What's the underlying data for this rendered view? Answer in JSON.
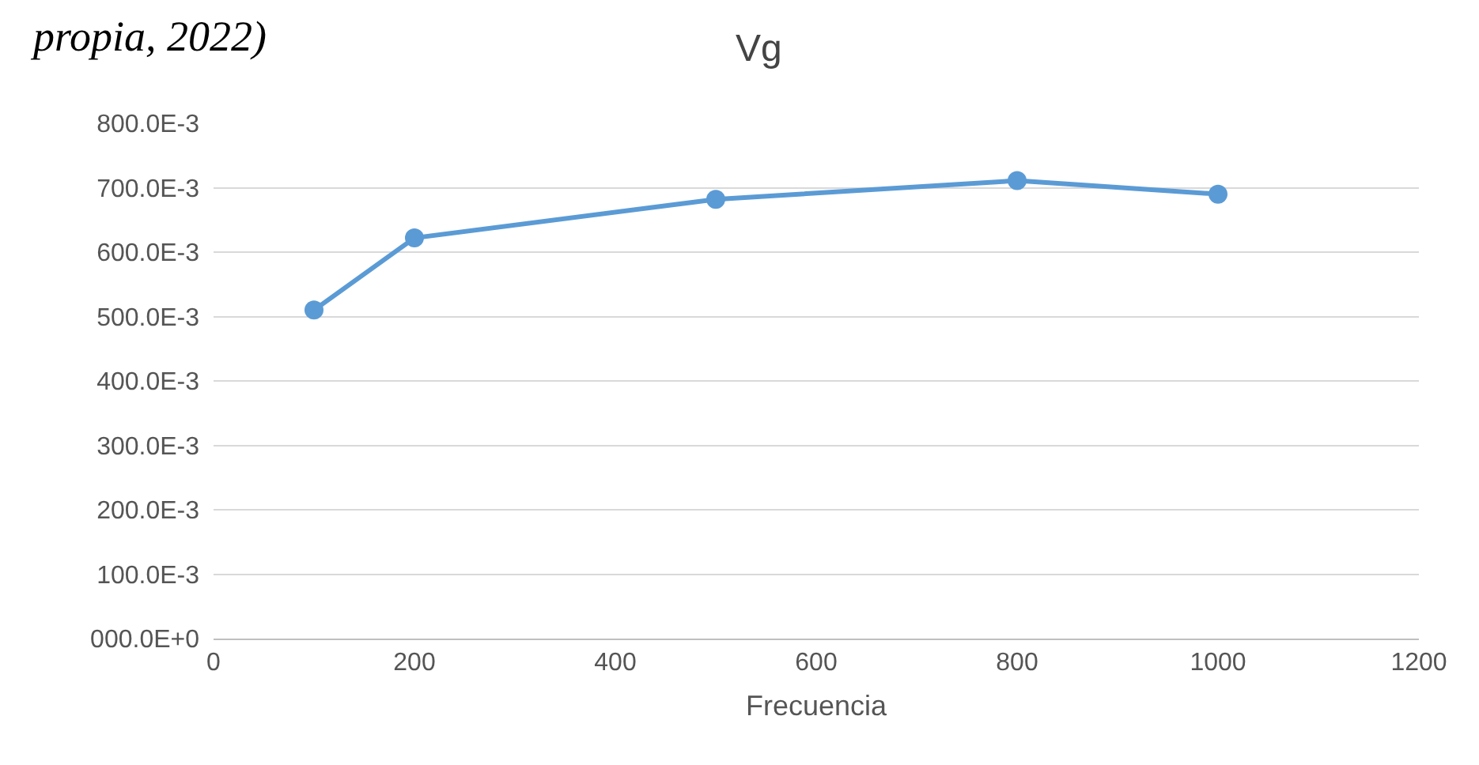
{
  "chart_data": {
    "type": "line",
    "title": "Vg",
    "xlabel": "Frecuencia",
    "annotations": [
      "propia, 2022)"
    ],
    "x": [
      100,
      200,
      500,
      800,
      1000
    ],
    "series": [
      {
        "color": "#5b9bd5",
        "values": [
          0.51,
          0.622,
          0.682,
          0.711,
          0.69
        ]
      }
    ],
    "xlim": [
      0,
      1200
    ],
    "xticks": [
      0,
      200,
      400,
      600,
      800,
      1000,
      1200
    ],
    "ylim": [
      0,
      0.8
    ],
    "yticks": [
      {
        "value": 0,
        "label": "000.0E+0"
      },
      {
        "value": 0.1,
        "label": "100.0E-3"
      },
      {
        "value": 0.2,
        "label": "200.0E-3"
      },
      {
        "value": 0.3,
        "label": "300.0E-3"
      },
      {
        "value": 0.4,
        "label": "400.0E-3"
      },
      {
        "value": 0.5,
        "label": "500.0E-3"
      },
      {
        "value": 0.6,
        "label": "600.0E-3"
      },
      {
        "value": 0.7,
        "label": "700.0E-3"
      },
      {
        "value": 0.8,
        "label": "800.0E-3"
      }
    ],
    "grid": "y",
    "marker": "circle",
    "line_style": "solid"
  }
}
